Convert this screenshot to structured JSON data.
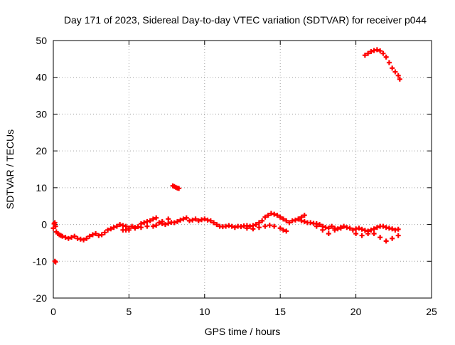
{
  "chart_data": {
    "type": "scatter",
    "title": "Day 171 of 2023, Sidereal Day-to-day VTEC variation (SDTVAR) for receiver p044",
    "xlabel": "GPS time / hours",
    "ylabel": "SDTVAR / TECUs",
    "xlim": [
      0,
      25
    ],
    "ylim": [
      -20,
      50
    ],
    "x_ticks": [
      0,
      5,
      10,
      15,
      20,
      25
    ],
    "x_tick_labels": [
      "0",
      "5",
      "10",
      "15",
      "20",
      "25"
    ],
    "y_ticks": [
      -20,
      -10,
      0,
      10,
      20,
      30,
      40,
      50
    ],
    "y_tick_labels": [
      "-20",
      "-10",
      "0",
      "10",
      "20",
      "30",
      "40",
      "50"
    ],
    "grid": true,
    "grid_style": "dotted",
    "marker": "plus",
    "series": [
      {
        "name": "SDTVAR",
        "color": "#ff0000",
        "x": [
          0.0,
          0.05,
          0.1,
          0.15,
          0.2,
          0.3,
          0.4,
          0.5,
          0.6,
          0.8,
          1.0,
          1.2,
          1.4,
          1.6,
          1.8,
          2.0,
          2.2,
          2.4,
          2.6,
          2.8,
          3.0,
          3.2,
          3.4,
          3.6,
          3.8,
          4.0,
          4.2,
          4.4,
          4.6,
          4.8,
          5.0,
          5.2,
          5.4,
          5.6,
          5.8,
          6.0,
          6.2,
          6.4,
          6.6,
          6.8,
          7.0,
          7.2,
          7.4,
          7.6,
          7.8,
          8.0,
          8.2,
          8.4,
          8.6,
          8.8,
          9.0,
          9.2,
          9.4,
          9.6,
          9.8,
          10.0,
          10.2,
          10.4,
          10.6,
          10.8,
          11.0,
          11.2,
          11.4,
          11.6,
          11.8,
          12.0,
          12.2,
          12.4,
          12.6,
          12.8,
          13.0,
          13.2,
          13.4,
          13.6,
          13.8,
          14.0,
          14.2,
          14.4,
          14.6,
          14.8,
          15.0,
          15.2,
          15.4,
          15.6,
          15.8,
          16.0,
          16.2,
          16.4,
          16.6,
          16.8,
          17.0,
          17.2,
          17.4,
          17.6,
          17.8,
          18.0,
          18.2,
          18.4,
          18.6,
          18.8,
          19.0,
          19.2,
          19.4,
          19.6,
          19.8,
          20.0,
          20.2,
          20.4,
          20.6,
          20.8,
          21.0,
          21.2,
          21.4,
          21.6,
          21.8,
          22.0,
          22.2,
          22.4,
          22.6,
          22.8,
          0.1,
          0.15,
          4.6,
          4.8,
          5.0,
          5.4,
          5.8,
          6.2,
          6.6,
          6.8,
          7.0,
          7.2,
          7.6,
          7.9,
          8.0,
          8.1,
          8.2,
          8.3,
          12.8,
          13.2,
          13.6,
          14.0,
          14.3,
          14.6,
          15.0,
          15.2,
          15.4,
          16.2,
          16.4,
          16.6,
          17.4,
          17.8,
          18.2,
          18.6,
          19.0,
          20.0,
          20.4,
          20.8,
          21.2,
          21.6,
          22.0,
          22.4,
          22.8,
          20.6,
          20.8,
          21.0,
          21.2,
          21.4,
          21.6,
          21.8,
          22.0,
          22.2,
          22.4,
          22.6,
          22.8,
          22.9
        ],
        "y": [
          -1.0,
          0.2,
          0.5,
          -0.5,
          -2.0,
          -2.5,
          -2.8,
          -3.0,
          -3.2,
          -3.5,
          -3.8,
          -3.5,
          -3.2,
          -3.8,
          -4.0,
          -4.2,
          -3.8,
          -3.2,
          -2.8,
          -2.5,
          -3.0,
          -2.8,
          -2.2,
          -1.5,
          -1.2,
          -0.8,
          -0.5,
          0.0,
          -0.3,
          -0.5,
          -1.0,
          -0.5,
          -0.8,
          -0.6,
          0.2,
          0.5,
          0.8,
          1.0,
          1.5,
          1.8,
          0.5,
          0.2,
          0.0,
          0.3,
          0.6,
          0.5,
          0.8,
          1.2,
          1.5,
          1.8,
          1.0,
          1.2,
          1.5,
          1.0,
          1.3,
          1.5,
          1.2,
          1.0,
          0.5,
          0.0,
          -0.5,
          -0.6,
          -0.5,
          -0.3,
          -0.5,
          -0.8,
          -0.5,
          -0.6,
          -0.4,
          -0.3,
          -0.5,
          -0.3,
          0.0,
          0.5,
          1.0,
          2.0,
          2.5,
          3.0,
          2.8,
          2.5,
          2.0,
          1.5,
          1.0,
          0.5,
          1.0,
          1.2,
          1.5,
          1.0,
          0.8,
          0.5,
          0.5,
          0.3,
          0.2,
          0.0,
          -0.5,
          -0.8,
          -1.0,
          -0.5,
          -1.0,
          -1.2,
          -0.8,
          -0.5,
          -0.8,
          -1.0,
          -1.5,
          -1.2,
          -1.0,
          -1.3,
          -1.6,
          -1.8,
          -1.5,
          -1.2,
          -0.8,
          -0.5,
          -0.5,
          -0.8,
          -1.0,
          -1.2,
          -1.5,
          -1.3,
          -10.0,
          -10.2,
          -1.5,
          -1.5,
          -1.5,
          -1.0,
          -0.8,
          -0.5,
          -0.5,
          -0.2,
          0.5,
          0.8,
          1.5,
          10.5,
          10.3,
          10.1,
          9.9,
          9.8,
          -1.0,
          -1.2,
          -0.8,
          -0.5,
          -0.2,
          -0.5,
          -1.0,
          -1.5,
          -1.8,
          1.5,
          2.0,
          2.5,
          -0.5,
          -1.5,
          -2.5,
          -1.5,
          -1.0,
          -2.5,
          -3.0,
          -2.5,
          -2.5,
          -3.5,
          -4.5,
          -3.8,
          -3.0,
          46.0,
          46.5,
          47.0,
          47.3,
          47.5,
          47.2,
          46.5,
          45.5,
          44.0,
          42.5,
          41.5,
          40.5,
          39.5
        ]
      }
    ]
  }
}
